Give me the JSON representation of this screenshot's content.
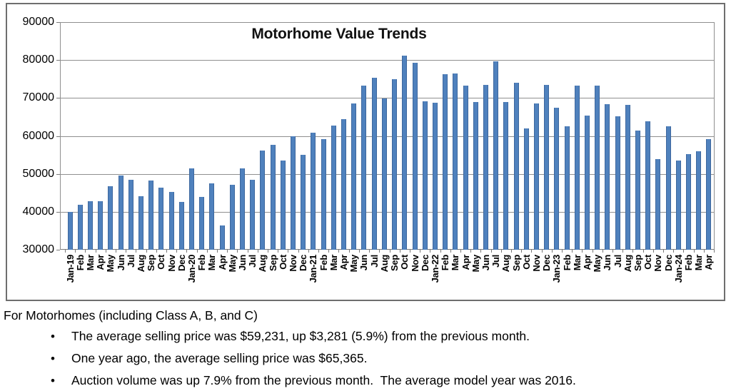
{
  "chart_data": {
    "type": "bar",
    "title": "Motorhome Value Trends",
    "xlabel": "",
    "ylabel": "",
    "ylim": [
      30000,
      90000
    ],
    "ytick_step": 10000,
    "grid": "horizontal",
    "legend": "none",
    "bar_color": "#4F81BD",
    "gridline_color": "#8F8F8F",
    "categories": [
      "Jan-19",
      "Feb",
      "Mar",
      "Apr",
      "May",
      "Jun",
      "Jul",
      "Aug",
      "Sep",
      "Oct",
      "Nov",
      "Dec",
      "Jan-20",
      "Feb",
      "Mar",
      "Apr",
      "May",
      "Jun",
      "Jul",
      "Aug",
      "Sep",
      "Oct",
      "Nov",
      "Dec",
      "Jan-21",
      "Feb",
      "Mar",
      "Apr",
      "May",
      "Jun",
      "Jul",
      "Aug",
      "Sep",
      "Oct",
      "Nov",
      "Dec",
      "Jan-22",
      "Feb",
      "Mar",
      "Apr",
      "May",
      "Jun",
      "Jul",
      "Aug",
      "Sep",
      "Oct",
      "Nov",
      "Dec",
      "Jan-23",
      "Feb",
      "Mar",
      "Apr",
      "May",
      "Jun",
      "Jul",
      "Aug",
      "Sep",
      "Oct",
      "Nov",
      "Dec",
      "Jan-24",
      "Feb",
      "Mar",
      "Apr"
    ],
    "values": [
      40000,
      41800,
      42700,
      42800,
      46700,
      49600,
      48500,
      44200,
      48300,
      46300,
      45200,
      42600,
      51400,
      43900,
      47400,
      36400,
      47100,
      51500,
      48500,
      56100,
      57600,
      53500,
      60000,
      55100,
      60800,
      59100,
      62800,
      64400,
      68600,
      73200,
      75400,
      69900,
      75000,
      81200,
      79200,
      69200,
      68800,
      76300,
      76400,
      73200,
      68900,
      73500,
      79700,
      69000,
      74100,
      61900,
      68500,
      73500,
      67500,
      62600,
      73300,
      65365,
      73300,
      68300,
      65200,
      68200,
      61500,
      63800,
      53900,
      62600,
      53600,
      55200,
      55950,
      59231
    ]
  },
  "notes": {
    "intro": "For Motorhomes (including Class A, B, and C)",
    "bullets": [
      "The average selling price was $59,231, up $3,281 (5.9%) from the previous month.",
      "One year ago, the average selling price was $65,365.",
      "Auction volume was up 7.9% from the previous month.  The average model year was 2016."
    ]
  }
}
